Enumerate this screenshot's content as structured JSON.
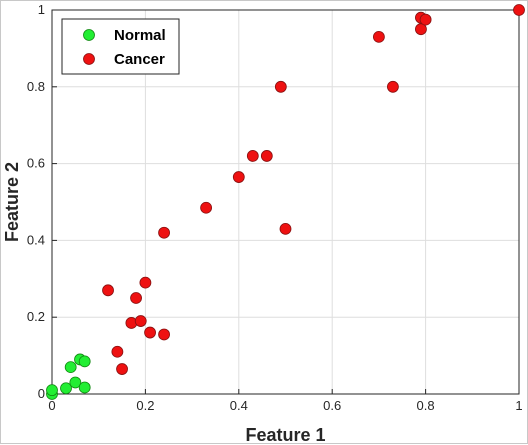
{
  "chart_data": {
    "type": "scatter",
    "xlabel": "Feature 1",
    "ylabel": "Feature 2",
    "xlim": [
      0,
      1
    ],
    "ylim": [
      0,
      1
    ],
    "xticks": [
      "0",
      "0.2",
      "0.4",
      "0.6",
      "0.8",
      "1"
    ],
    "yticks": [
      "0",
      "0.2",
      "0.4",
      "0.6",
      "0.8",
      "1"
    ],
    "grid": true,
    "legend_position": "top-left",
    "series": [
      {
        "name": "Normal",
        "color": "#22ee33",
        "points": [
          [
            0.0,
            0.0
          ],
          [
            0.0,
            0.01
          ],
          [
            0.03,
            0.015
          ],
          [
            0.04,
            0.07
          ],
          [
            0.05,
            0.03
          ],
          [
            0.06,
            0.09
          ],
          [
            0.07,
            0.085
          ],
          [
            0.07,
            0.017
          ]
        ]
      },
      {
        "name": "Cancer",
        "color": "#ee1111",
        "points": [
          [
            0.12,
            0.27
          ],
          [
            0.14,
            0.11
          ],
          [
            0.15,
            0.065
          ],
          [
            0.17,
            0.185
          ],
          [
            0.18,
            0.25
          ],
          [
            0.19,
            0.19
          ],
          [
            0.2,
            0.29
          ],
          [
            0.21,
            0.16
          ],
          [
            0.24,
            0.155
          ],
          [
            0.24,
            0.42
          ],
          [
            0.33,
            0.485
          ],
          [
            0.4,
            0.565
          ],
          [
            0.43,
            0.62
          ],
          [
            0.46,
            0.62
          ],
          [
            0.49,
            0.8
          ],
          [
            0.5,
            0.43
          ],
          [
            0.7,
            0.93
          ],
          [
            0.73,
            0.8
          ],
          [
            0.79,
            0.98
          ],
          [
            0.79,
            0.95
          ],
          [
            0.8,
            0.975
          ],
          [
            1.0,
            1.0
          ]
        ]
      }
    ]
  }
}
